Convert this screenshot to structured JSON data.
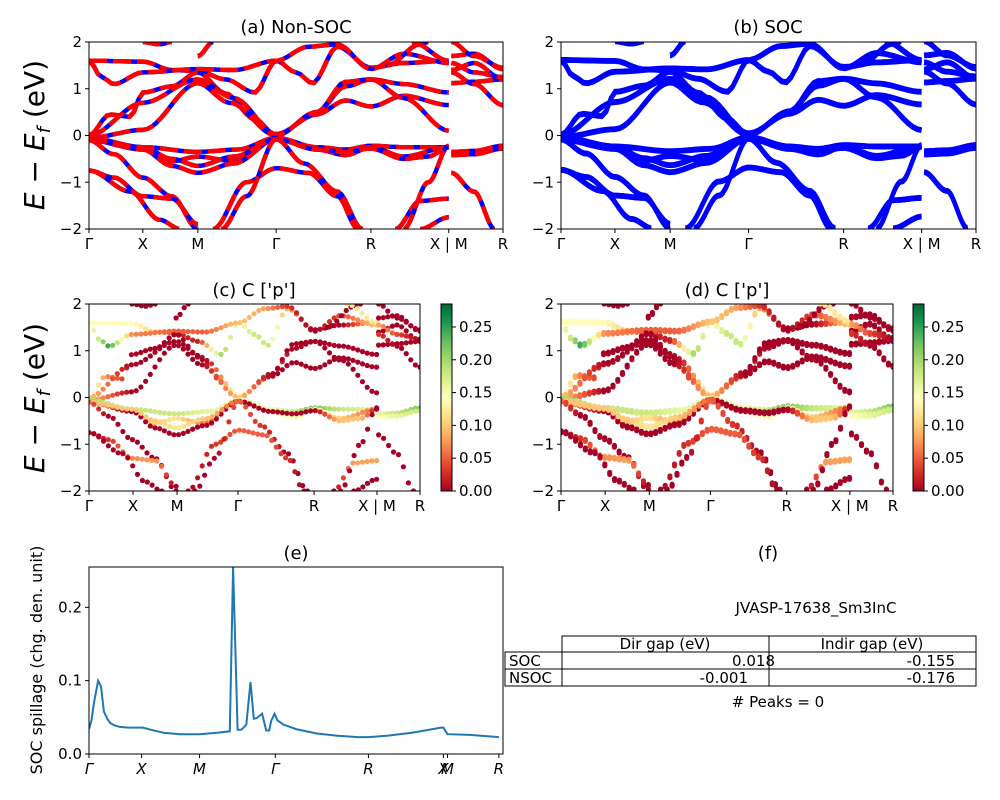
{
  "chart_data": [
    {
      "id": "a",
      "type": "line",
      "title": "(a) Non-SOC",
      "ylabel": "E − E_f (eV)",
      "ylim": [
        -2,
        2
      ],
      "yticks": [
        "−2",
        "−1",
        "0",
        "1",
        "2"
      ],
      "ytick_values": [
        -2,
        -1,
        0,
        1,
        2
      ],
      "kpath_labels": [
        "Γ",
        "X",
        "M",
        "Γ",
        "R",
        "X | M",
        "R"
      ],
      "kpath_positions": [
        0,
        0.13,
        0.263,
        0.452,
        0.681,
        0.869,
        1.0
      ],
      "style": "red line dashed over blue line",
      "colors": {
        "primary": "#ff0000",
        "secondary": "#0000ff"
      }
    },
    {
      "id": "b",
      "type": "line",
      "title": "(b) SOC",
      "ylim": [
        -2,
        2
      ],
      "yticks": [
        "−2",
        "−1",
        "0",
        "1",
        "2"
      ],
      "ytick_values": [
        -2,
        -1,
        0,
        1,
        2
      ],
      "kpath_labels": [
        "Γ",
        "X",
        "M",
        "Γ",
        "R",
        "X | M",
        "R"
      ],
      "kpath_positions": [
        0,
        0.13,
        0.263,
        0.452,
        0.681,
        0.869,
        1.0
      ],
      "colors": {
        "primary": "#0000ff"
      }
    },
    {
      "id": "c",
      "type": "scatter",
      "title": "(c)  C ['p']",
      "ylabel": "E − E_f (eV)",
      "ylim": [
        -2,
        2
      ],
      "yticks": [
        "−2",
        "−1",
        "0",
        "1",
        "2"
      ],
      "ytick_values": [
        -2,
        -1,
        0,
        1,
        2
      ],
      "kpath_labels": [
        "Γ",
        "X",
        "M",
        "Γ",
        "R",
        "X | M",
        "R"
      ],
      "kpath_positions": [
        0,
        0.133,
        0.266,
        0.45,
        0.68,
        0.87,
        1.0
      ],
      "colorbar": {
        "cmap": "RdYlGn",
        "range": [
          0,
          0.285
        ],
        "ticks": [
          "0.00",
          "0.05",
          "0.10",
          "0.15",
          "0.20",
          "0.25"
        ],
        "tick_values": [
          0,
          0.05,
          0.1,
          0.15,
          0.2,
          0.25
        ]
      }
    },
    {
      "id": "d",
      "type": "scatter",
      "title": "(d) C ['p']",
      "ylim": [
        -2,
        2
      ],
      "yticks": [
        "−2",
        "−1",
        "0",
        "1",
        "2"
      ],
      "ytick_values": [
        -2,
        -1,
        0,
        1,
        2
      ],
      "kpath_labels": [
        "Γ",
        "X",
        "M",
        "Γ",
        "R",
        "X | M",
        "R"
      ],
      "kpath_positions": [
        0,
        0.133,
        0.266,
        0.45,
        0.68,
        0.87,
        1.0
      ],
      "colorbar": {
        "cmap": "RdYlGn",
        "range": [
          0,
          0.285
        ],
        "ticks": [
          "0.00",
          "0.05",
          "0.10",
          "0.15",
          "0.20",
          "0.25"
        ],
        "tick_values": [
          0,
          0.05,
          0.1,
          0.15,
          0.2,
          0.25
        ]
      }
    },
    {
      "id": "e",
      "type": "line",
      "title": "(e)",
      "ylabel": "SOC spillage (chg. den. unit)",
      "ylim": [
        0,
        0.255
      ],
      "yticks": [
        "0.0",
        "0.1",
        "0.2"
      ],
      "ytick_values": [
        0,
        0.1,
        0.2
      ],
      "kpath_labels": [
        "Γ",
        "X",
        "M",
        "Γ",
        "R",
        "X",
        "M",
        "R"
      ],
      "kpath_positions": [
        0,
        0.127,
        0.267,
        0.45,
        0.675,
        0.856,
        0.866,
        0.99
      ],
      "color": "#1f77b4",
      "x": [
        0,
        0.006,
        0.012,
        0.022,
        0.029,
        0.036,
        0.044,
        0.052,
        0.062,
        0.075,
        0.095,
        0.13,
        0.15,
        0.18,
        0.22,
        0.267,
        0.31,
        0.34,
        0.348,
        0.359,
        0.368,
        0.38,
        0.39,
        0.398,
        0.405,
        0.418,
        0.428,
        0.435,
        0.44,
        0.448,
        0.455,
        0.465,
        0.47,
        0.48,
        0.5,
        0.55,
        0.6,
        0.65,
        0.675,
        0.72,
        0.78,
        0.83,
        0.85,
        0.856,
        0.866,
        0.92,
        0.99
      ],
      "y": [
        0.034,
        0.046,
        0.07,
        0.1,
        0.092,
        0.058,
        0.048,
        0.042,
        0.039,
        0.037,
        0.036,
        0.036,
        0.033,
        0.029,
        0.027,
        0.027,
        0.029,
        0.031,
        0.255,
        0.033,
        0.033,
        0.04,
        0.098,
        0.048,
        0.049,
        0.055,
        0.032,
        0.032,
        0.045,
        0.055,
        0.046,
        0.042,
        0.04,
        0.038,
        0.034,
        0.028,
        0.025,
        0.023,
        0.023,
        0.025,
        0.029,
        0.034,
        0.036,
        0.036,
        0.027,
        0.026,
        0.023
      ]
    }
  ],
  "info_panel": {
    "title": "(f)",
    "material_id": "JVASP-17638_Sm3InC",
    "table": {
      "columns": [
        "",
        "Dir gap (eV)",
        "Indir gap (eV)"
      ],
      "rows": [
        {
          "label": "SOC",
          "dir_gap": "0.018",
          "indir_gap": "-0.155"
        },
        {
          "label": "NSOC",
          "dir_gap": "-0.001",
          "indir_gap": "-0.176"
        }
      ]
    },
    "peaks_text": "# Peaks = 0"
  },
  "bands": [
    {
      "seg": [
        [
          0,
          1.6
        ],
        [
          0.13,
          1.58
        ],
        [
          0.2,
          1.4
        ],
        [
          0.263,
          1.38
        ],
        [
          0.33,
          1.2
        ],
        [
          0.4,
          0.92
        ],
        [
          0.452,
          1.6
        ],
        [
          0.5,
          1.35
        ],
        [
          0.54,
          1.12
        ],
        [
          0.6,
          1.9
        ],
        [
          0.681,
          1.45
        ],
        [
          0.76,
          1.55
        ],
        [
          0.869,
          1.6
        ]
      ],
      "w": [
        0.14,
        0.14,
        0.1,
        0.02,
        0.02,
        0.2,
        0.14,
        0.18,
        0.18,
        0.08,
        0.0,
        0.0,
        0.1
      ]
    },
    {
      "seg": [
        [
          0,
          1.6
        ],
        [
          0.03,
          1.25
        ],
        [
          0.06,
          1.1
        ],
        [
          0.13,
          1.35
        ],
        [
          0.263,
          1.42
        ],
        [
          0.35,
          1.4
        ],
        [
          0.452,
          1.6
        ],
        [
          0.53,
          1.9
        ],
        [
          0.6,
          1.95
        ],
        [
          0.681,
          1.42
        ],
        [
          0.76,
          1.75
        ],
        [
          0.869,
          1.55
        ]
      ],
      "w": [
        0.14,
        0.18,
        0.25,
        0.07,
        0.05,
        0.05,
        0.1,
        0.08,
        0.03,
        0.0,
        0.04,
        0.1
      ]
    },
    {
      "seg": [
        [
          0,
          0.0
        ],
        [
          0.05,
          0.45
        ],
        [
          0.1,
          0.4
        ],
        [
          0.13,
          0.92
        ],
        [
          0.2,
          1.05
        ],
        [
          0.263,
          1.35
        ],
        [
          0.33,
          0.9
        ],
        [
          0.4,
          0.35
        ],
        [
          0.452,
          0.0
        ],
        [
          0.55,
          0.5
        ],
        [
          0.62,
          1.05
        ],
        [
          0.681,
          1.2
        ],
        [
          0.76,
          1.1
        ],
        [
          0.869,
          0.92
        ]
      ],
      "w": [
        0.18,
        0.07,
        0.04,
        0.0,
        0.0,
        0.0,
        0.0,
        0.05,
        0.2,
        0.05,
        0.0,
        0.0,
        0.0,
        0.0
      ]
    },
    {
      "seg": [
        [
          0,
          0.0
        ],
        [
          0.13,
          0.7
        ],
        [
          0.263,
          1.2
        ],
        [
          0.35,
          0.8
        ],
        [
          0.452,
          0.03
        ],
        [
          0.55,
          0.45
        ],
        [
          0.62,
          0.75
        ],
        [
          0.681,
          0.62
        ],
        [
          0.76,
          0.85
        ],
        [
          0.869,
          0.65
        ]
      ],
      "w": [
        0.1,
        0.0,
        0.0,
        0.0,
        0.15,
        0.0,
        0.0,
        0.0,
        0.0,
        0.0
      ]
    },
    {
      "seg": [
        [
          0,
          -0.05
        ],
        [
          0.13,
          0.12
        ],
        [
          0.263,
          1.12
        ],
        [
          0.34,
          0.7
        ],
        [
          0.452,
          0.0
        ],
        [
          0.55,
          0.5
        ],
        [
          0.62,
          1.15
        ],
        [
          0.681,
          1.2
        ],
        [
          0.76,
          0.8
        ],
        [
          0.869,
          0.1
        ]
      ],
      "w": [
        0.1,
        0.0,
        0.0,
        0.0,
        0.1,
        0.0,
        0.0,
        0.0,
        0.0,
        0.0
      ]
    },
    {
      "seg": [
        [
          0,
          -0.05
        ],
        [
          0.13,
          -0.25
        ],
        [
          0.263,
          -0.35
        ],
        [
          0.36,
          -0.3
        ],
        [
          0.452,
          -0.05
        ],
        [
          0.55,
          -0.25
        ],
        [
          0.62,
          -0.3
        ],
        [
          0.681,
          -0.22
        ],
        [
          0.76,
          -0.25
        ],
        [
          0.869,
          -0.25
        ]
      ],
      "w": [
        0.2,
        0.18,
        0.18,
        0.16,
        0.15,
        0.15,
        0.18,
        0.22,
        0.18,
        0.16
      ]
    },
    {
      "seg": [
        [
          0,
          -0.1
        ],
        [
          0.13,
          -0.3
        ],
        [
          0.2,
          -0.55
        ],
        [
          0.263,
          -0.45
        ],
        [
          0.35,
          -0.55
        ],
        [
          0.452,
          -0.08
        ],
        [
          0.55,
          -0.3
        ],
        [
          0.62,
          -0.42
        ],
        [
          0.681,
          -0.25
        ],
        [
          0.76,
          -0.45
        ],
        [
          0.869,
          -0.25
        ]
      ],
      "w": [
        0.1,
        0.12,
        0.1,
        0.12,
        0.06,
        0.05,
        0.12,
        0.15,
        0.15,
        0.1,
        0.05
      ]
    },
    {
      "seg": [
        [
          0,
          -0.1
        ],
        [
          0.13,
          -0.3
        ],
        [
          0.2,
          -0.65
        ],
        [
          0.263,
          -0.8
        ],
        [
          0.35,
          -0.6
        ],
        [
          0.452,
          -0.08
        ],
        [
          0.55,
          -0.3
        ],
        [
          0.62,
          -0.35
        ],
        [
          0.681,
          -0.28
        ],
        [
          0.76,
          -0.5
        ],
        [
          0.82,
          -0.45
        ],
        [
          0.869,
          -0.25
        ]
      ],
      "w": [
        0.05,
        0.0,
        0.0,
        0.0,
        0.0,
        0.0,
        0.0,
        0.0,
        0.0,
        0.1,
        0.1,
        0.0
      ]
    },
    {
      "seg": [
        [
          0,
          -0.1
        ],
        [
          0.13,
          -0.25
        ],
        [
          0.2,
          -0.5
        ],
        [
          0.263,
          -0.65
        ],
        [
          0.35,
          -0.45
        ],
        [
          0.452,
          -0.08
        ],
        [
          0.52,
          -0.6
        ],
        [
          0.6,
          -1.2
        ],
        [
          0.66,
          -2.0
        ]
      ],
      "w": [
        0.1,
        0.1,
        0.1,
        0.12,
        0.1,
        0.05,
        0.03,
        0.0,
        0.0
      ]
    },
    {
      "seg": [
        [
          0,
          -0.1
        ],
        [
          0.06,
          -0.4
        ],
        [
          0.13,
          -0.9
        ],
        [
          0.2,
          -1.3
        ],
        [
          0.263,
          -2.0
        ]
      ],
      "w": [
        0.05,
        0.0,
        0.0,
        0.0,
        0.0
      ]
    },
    {
      "seg": [
        [
          0,
          -0.75
        ],
        [
          0.06,
          -0.9
        ],
        [
          0.13,
          -1.3
        ],
        [
          0.2,
          -1.35
        ],
        [
          0.263,
          -1.9
        ]
      ],
      "w": [
        0.0,
        0.03,
        0.07,
        0.08,
        0.0
      ]
    },
    {
      "seg": [
        [
          0,
          -0.75
        ],
        [
          0.1,
          -1.2
        ],
        [
          0.17,
          -1.8
        ],
        [
          0.22,
          -2.0
        ]
      ],
      "w": [
        0.0,
        0.0,
        0.0,
        0.0
      ]
    },
    {
      "seg": [
        [
          0.3,
          -2.0
        ],
        [
          0.38,
          -1.0
        ],
        [
          0.452,
          -0.7
        ],
        [
          0.53,
          -0.8
        ],
        [
          0.6,
          -1.3
        ],
        [
          0.65,
          -2.0
        ]
      ],
      "w": [
        0.0,
        0.03,
        0.05,
        0.05,
        0.03,
        0.0
      ]
    },
    {
      "seg": [
        [
          0.32,
          -2.0
        ],
        [
          0.38,
          -1.3
        ],
        [
          0.452,
          -0.08
        ]
      ],
      "w": [
        0.0,
        0.0,
        0.05
      ]
    },
    {
      "seg": [
        [
          0.74,
          -2.0
        ],
        [
          0.8,
          -1.4
        ],
        [
          0.869,
          -1.35
        ]
      ],
      "w": [
        0.0,
        0.08,
        0.08
      ]
    },
    {
      "seg": [
        [
          0.76,
          -2.0
        ],
        [
          0.82,
          -1.0
        ],
        [
          0.869,
          -0.22
        ]
      ],
      "w": [
        0.0,
        0.0,
        0.0
      ]
    },
    {
      "seg": [
        [
          0.8,
          -2.0
        ],
        [
          0.869,
          -1.75
        ]
      ],
      "w": [
        0.0,
        0.0
      ]
    },
    {
      "seg": [
        [
          0.72,
          1.5
        ],
        [
          0.8,
          1.95
        ],
        [
          0.82,
          2.0
        ]
      ],
      "w": [
        0.0,
        0.0,
        0.0
      ]
    },
    {
      "seg": [
        [
          0.13,
          2.0
        ],
        [
          0.17,
          1.95
        ],
        [
          0.2,
          2.0
        ]
      ],
      "w": [
        0.0,
        0.0,
        0.0
      ]
    },
    {
      "seg": [
        [
          0.263,
          1.7
        ],
        [
          0.23,
          2.0
        ]
      ],
      "w": [
        0.0,
        0.0
      ]
    },
    {
      "seg": [
        [
          0.263,
          1.7
        ],
        [
          0.3,
          2.0
        ]
      ],
      "w": [
        0.0,
        0.0
      ]
    },
    {
      "seg": [
        [
          0.78,
          2.0
        ],
        [
          0.869,
          1.6
        ]
      ],
      "w": [
        0.12,
        0.12
      ]
    },
    {
      "seg": [
        [
          0.875,
          1.7
        ],
        [
          0.93,
          1.75
        ],
        [
          1.0,
          1.42
        ]
      ],
      "w": [
        0.0,
        0.0,
        0.0
      ]
    },
    {
      "seg": [
        [
          0.875,
          1.4
        ],
        [
          0.93,
          1.55
        ],
        [
          1.0,
          1.2
        ]
      ],
      "w": [
        0.0,
        0.0,
        0.0
      ]
    },
    {
      "seg": [
        [
          0.875,
          1.12
        ],
        [
          0.93,
          1.15
        ],
        [
          1.0,
          1.2
        ]
      ],
      "w": [
        0.0,
        0.0,
        0.0
      ]
    },
    {
      "seg": [
        [
          0.875,
          1.35
        ],
        [
          0.93,
          1.1
        ],
        [
          1.0,
          0.65
        ]
      ],
      "w": [
        0.03,
        0.0,
        0.0
      ]
    },
    {
      "seg": [
        [
          0.875,
          1.55
        ],
        [
          0.93,
          1.35
        ],
        [
          1.0,
          1.25
        ]
      ],
      "w": [
        0.08,
        0.04,
        0.0
      ]
    },
    {
      "seg": [
        [
          0.875,
          2.0
        ],
        [
          0.93,
          1.7
        ],
        [
          1.0,
          1.45
        ]
      ],
      "w": [
        0.0,
        0.0,
        0.0
      ]
    },
    {
      "seg": [
        [
          0.875,
          -0.35
        ],
        [
          0.93,
          -0.33
        ],
        [
          1.0,
          -0.22
        ]
      ],
      "w": [
        0.16,
        0.18,
        0.22
      ]
    },
    {
      "seg": [
        [
          0.875,
          -0.42
        ],
        [
          0.93,
          -0.4
        ],
        [
          1.0,
          -0.28
        ]
      ],
      "w": [
        0.14,
        0.16,
        0.18
      ]
    },
    {
      "seg": [
        [
          0.875,
          -0.8
        ],
        [
          0.93,
          -1.2
        ],
        [
          0.98,
          -2.0
        ]
      ],
      "w": [
        0.0,
        0.0,
        0.0
      ]
    }
  ]
}
